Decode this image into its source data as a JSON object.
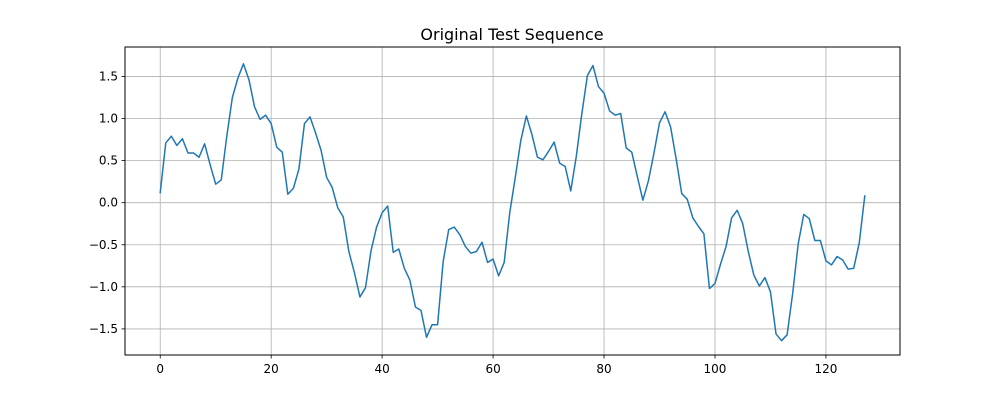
{
  "chart_data": {
    "type": "line",
    "title": "Original Test Sequence",
    "xlabel": "",
    "ylabel": "",
    "xlim": [
      -6.35,
      133.35
    ],
    "ylim": [
      -1.81,
      1.85
    ],
    "x_ticks": [
      0,
      20,
      40,
      60,
      80,
      100,
      120
    ],
    "y_ticks": [
      -1.5,
      -1.0,
      -0.5,
      0.0,
      0.5,
      1.0,
      1.5
    ],
    "x_tick_labels": [
      "0",
      "20",
      "40",
      "60",
      "80",
      "100",
      "120"
    ],
    "y_tick_labels": [
      "−1.5",
      "−1.0",
      "−0.5",
      "0.0",
      "0.5",
      "1.0",
      "1.5"
    ],
    "grid": true,
    "legend": "none",
    "series": [
      {
        "color": "#1f77b4",
        "x": [
          0,
          1,
          2,
          3,
          4,
          5,
          6,
          7,
          8,
          9,
          10,
          11,
          12,
          13,
          14,
          15,
          16,
          17,
          18,
          19,
          20,
          21,
          22,
          23,
          24,
          25,
          26,
          27,
          28,
          29,
          30,
          31,
          32,
          33,
          34,
          35,
          36,
          37,
          38,
          39,
          40,
          41,
          42,
          43,
          44,
          45,
          46,
          47,
          48,
          49,
          50,
          51,
          52,
          53,
          54,
          55,
          56,
          57,
          58,
          59,
          60,
          61,
          62,
          63,
          64,
          65,
          66,
          67,
          68,
          69,
          70,
          71,
          72,
          73,
          74,
          75,
          76,
          77,
          78,
          79,
          80,
          81,
          82,
          83,
          84,
          85,
          86,
          87,
          88,
          89,
          90,
          91,
          92,
          93,
          94,
          95,
          96,
          97,
          98,
          99,
          100,
          101,
          102,
          103,
          104,
          105,
          106,
          107,
          108,
          109,
          110,
          111,
          112,
          113,
          114,
          115,
          116,
          117,
          118,
          119,
          120,
          121,
          122,
          123,
          124,
          125,
          126,
          127
        ],
        "values": [
          0.12,
          0.71,
          0.79,
          0.68,
          0.76,
          0.59,
          0.59,
          0.54,
          0.7,
          0.45,
          0.22,
          0.27,
          0.79,
          1.25,
          1.48,
          1.65,
          1.46,
          1.14,
          0.99,
          1.04,
          0.94,
          0.66,
          0.6,
          0.1,
          0.17,
          0.4,
          0.94,
          1.02,
          0.83,
          0.62,
          0.3,
          0.18,
          -0.06,
          -0.17,
          -0.58,
          -0.83,
          -1.12,
          -1.01,
          -0.57,
          -0.29,
          -0.12,
          -0.04,
          -0.59,
          -0.55,
          -0.78,
          -0.92,
          -1.24,
          -1.28,
          -1.6,
          -1.45,
          -1.45,
          -0.7,
          -0.32,
          -0.29,
          -0.38,
          -0.52,
          -0.6,
          -0.58,
          -0.47,
          -0.71,
          -0.67,
          -0.87,
          -0.71,
          -0.12,
          0.3,
          0.74,
          1.03,
          0.81,
          0.54,
          0.51,
          0.61,
          0.72,
          0.47,
          0.43,
          0.14,
          0.55,
          1.06,
          1.51,
          1.63,
          1.38,
          1.3,
          1.09,
          1.04,
          1.06,
          0.65,
          0.6,
          0.31,
          0.03,
          0.26,
          0.59,
          0.95,
          1.08,
          0.9,
          0.52,
          0.11,
          0.04,
          -0.18,
          -0.28,
          -0.37,
          -1.02,
          -0.96,
          -0.73,
          -0.52,
          -0.18,
          -0.09,
          -0.25,
          -0.58,
          -0.86,
          -0.99,
          -0.89,
          -1.06,
          -1.56,
          -1.64,
          -1.57,
          -1.08,
          -0.49,
          -0.14,
          -0.19,
          -0.45,
          -0.45,
          -0.69,
          -0.74,
          -0.64,
          -0.68,
          -0.79,
          -0.78,
          -0.48,
          0.08
        ]
      }
    ]
  }
}
